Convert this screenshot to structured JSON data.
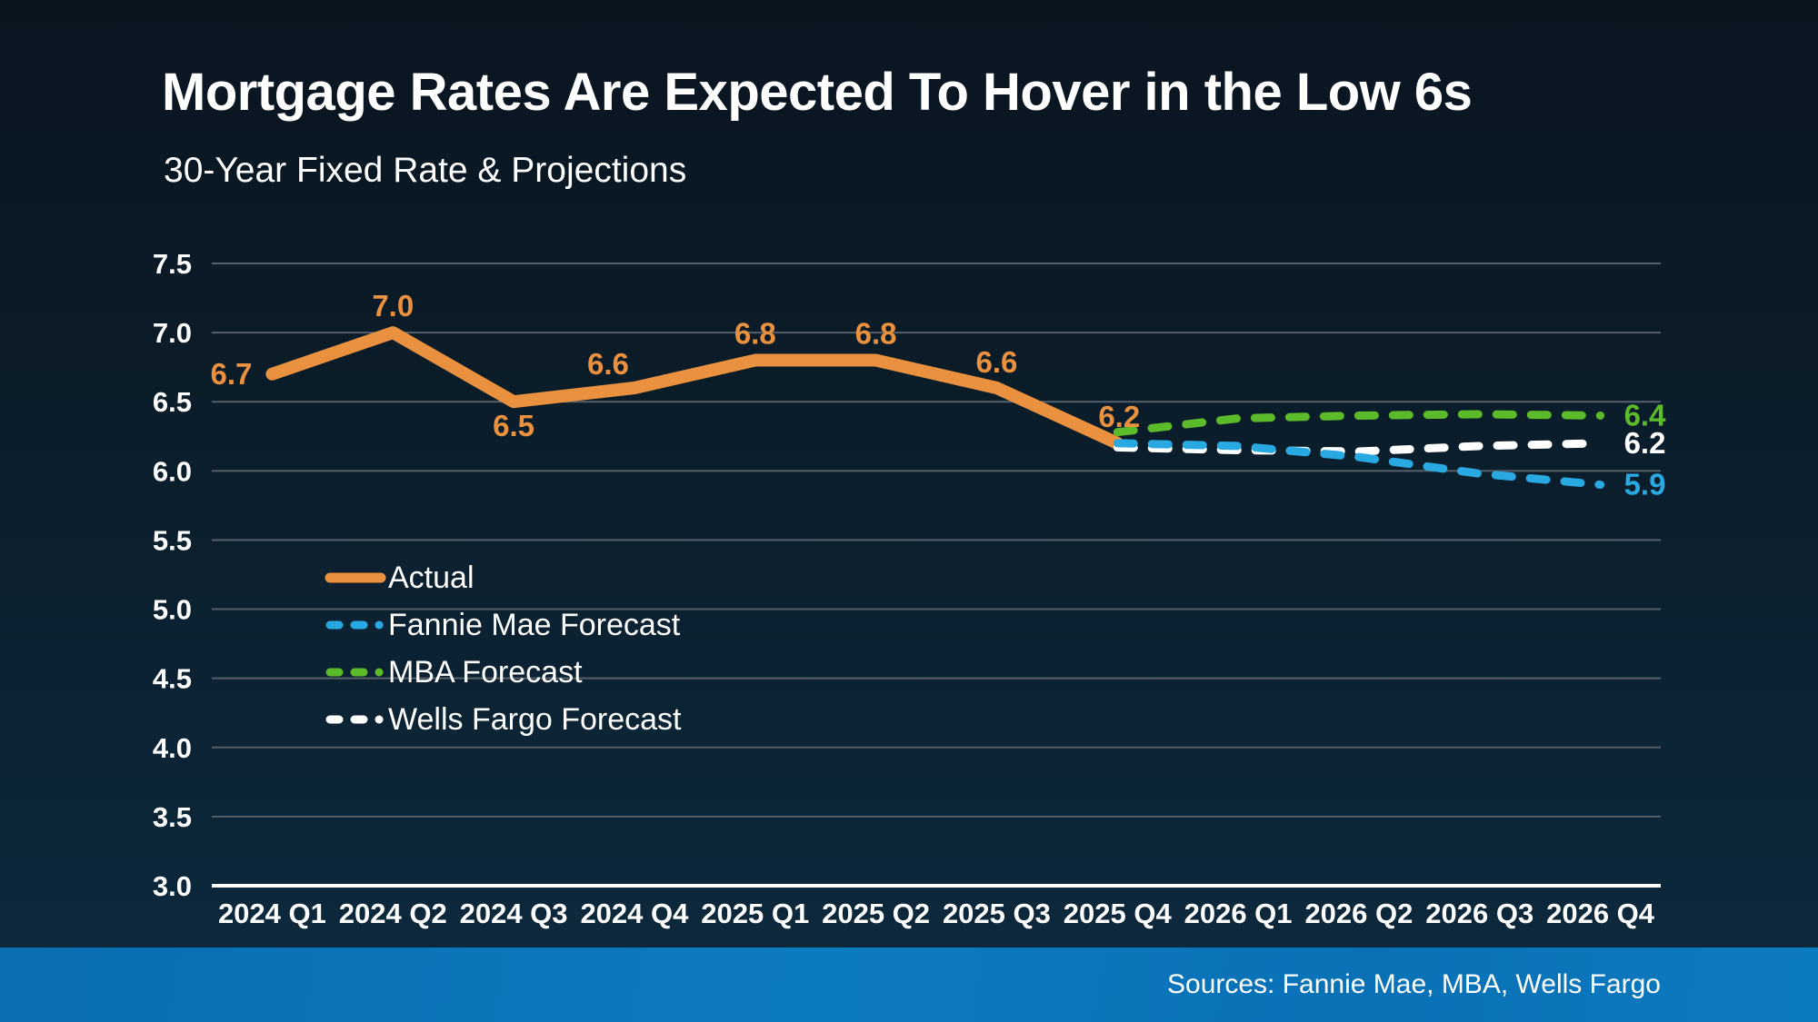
{
  "page": {
    "title": "Mortgage Rates Are Expected To Hover in the Low 6s",
    "subtitle": "30-Year Fixed Rate & Projections",
    "source_note": "Sources: Fannie Mae, MBA, Wells Fargo"
  },
  "colors": {
    "background_top": "#0a1520",
    "background_bottom": "#0d2a3e",
    "actual_orange": "#EA913F",
    "fannie_blue": "#29A9E1",
    "mba_green": "#5CBB2B",
    "wells_white": "#FFFFFF",
    "gridline_gray": "#56606A",
    "axis_white": "#FFFFFF",
    "footer_blue": "#0B74BA",
    "tick_text": "#FFFFFF"
  },
  "legend": {
    "items": [
      {
        "label": "Actual",
        "color": "#EA913F",
        "style": "solid"
      },
      {
        "label": "Fannie Mae Forecast",
        "color": "#29A9E1",
        "style": "dashed"
      },
      {
        "label": "MBA Forecast",
        "color": "#5CBB2B",
        "style": "dashed"
      },
      {
        "label": "Wells Fargo Forecast",
        "color": "#FFFFFF",
        "style": "dashed"
      }
    ]
  },
  "chart_data": {
    "type": "line",
    "categories": [
      "2024 Q1",
      "2024 Q2",
      "2024 Q3",
      "2024 Q4",
      "2025 Q1",
      "2025 Q2",
      "2025 Q3",
      "2025 Q4",
      "2026 Q1",
      "2026 Q2",
      "2026 Q3",
      "2026 Q4"
    ],
    "ylim": [
      3.0,
      7.5
    ],
    "ytick_step": 0.5,
    "ytick_labels": [
      "3.0",
      "3.5",
      "4.0",
      "4.5",
      "5.0",
      "5.5",
      "6.0",
      "6.5",
      "7.0",
      "7.5"
    ],
    "grid": "horizontal",
    "legend_position": "inside-left",
    "series": [
      {
        "name": "Actual",
        "color": "#EA913F",
        "style": "solid",
        "values": [
          6.7,
          7.0,
          6.5,
          6.6,
          6.8,
          6.8,
          6.6,
          6.2,
          null,
          null,
          null,
          null
        ],
        "point_labels": [
          "6.7",
          "7.0",
          "6.5",
          "6.6",
          "6.8",
          "6.8",
          "6.6",
          "6.2"
        ]
      },
      {
        "name": "MBA Forecast",
        "color": "#5CBB2B",
        "style": "dashed",
        "values": [
          null,
          null,
          null,
          null,
          null,
          null,
          null,
          6.28,
          6.38,
          6.4,
          6.41,
          6.4
        ],
        "end_label": "6.4"
      },
      {
        "name": "Wells Fargo Forecast",
        "color": "#FFFFFF",
        "style": "dashed",
        "values": [
          null,
          null,
          null,
          null,
          null,
          null,
          null,
          6.17,
          6.15,
          6.14,
          6.18,
          6.2
        ],
        "end_label": "6.2"
      },
      {
        "name": "Fannie Mae Forecast",
        "color": "#29A9E1",
        "style": "dashed",
        "values": [
          null,
          null,
          null,
          null,
          null,
          null,
          null,
          6.2,
          6.18,
          6.1,
          5.98,
          5.9
        ],
        "end_label": "5.9"
      }
    ]
  }
}
